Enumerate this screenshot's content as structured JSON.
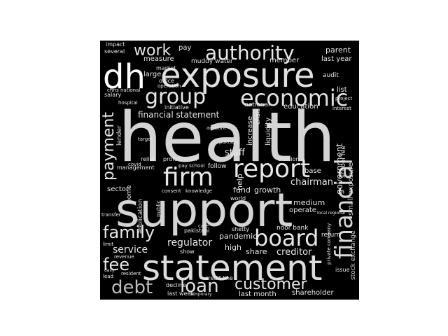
{
  "cloud": {
    "words": [
      "health",
      "support",
      "statement",
      "dh",
      "exposure",
      "report",
      "board",
      "firm",
      "financial",
      "economic",
      "group",
      "authority",
      "work",
      "customer",
      "debt",
      "loan",
      "family",
      "fee",
      "payment",
      "service",
      "regulator",
      "creditor",
      "pandemic",
      "high",
      "share",
      "staff",
      "financial statement",
      "chairman",
      "fund",
      "growth",
      "medium",
      "operate",
      "government",
      "small exposure",
      "stock exchange",
      "shareholder",
      "last month",
      "last year",
      "parent",
      "muddy water",
      "measure",
      "member",
      "impact",
      "several",
      "salary",
      "chris national",
      "hospital",
      "market",
      "office",
      "operation",
      "education",
      "national",
      "increase",
      "liquidity",
      "crisis",
      "help",
      "lender",
      "home",
      "covid",
      "management",
      "relief",
      "professional",
      "pay school",
      "follow",
      "account",
      "pakistan",
      "sector",
      "application",
      "public",
      "consent",
      "knowledge",
      "world",
      "base",
      "list",
      "audit",
      "project",
      "interest",
      "decline",
      "credit line",
      "issue",
      "revenue",
      "resident",
      "lead",
      "transfer",
      "pakistani",
      "care",
      "show",
      "noor bank",
      "school fee",
      "large",
      "pay",
      "initiative",
      "target",
      "division",
      "local regional",
      "private company",
      "return",
      "shetty",
      "last week",
      "limit",
      "daily",
      "temporary"
    ]
  }
}
